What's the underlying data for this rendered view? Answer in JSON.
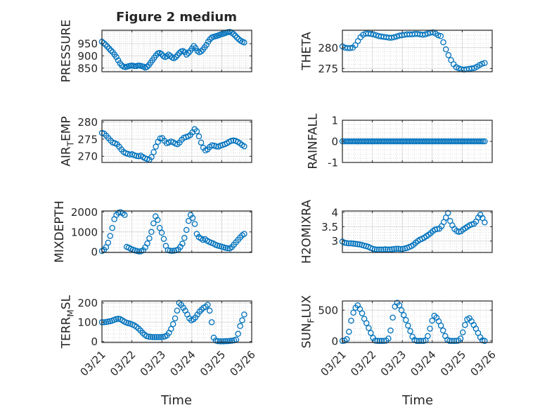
{
  "figure": {
    "title": "Figure 2 medium"
  },
  "x_tick_labels": [
    "03/21",
    "03/22",
    "03/23",
    "03/24",
    "03/25",
    "03/26"
  ],
  "x_axis_label": "Time",
  "colors": {
    "marker": "#0072BD",
    "axis": "#262626",
    "grid": "#d9d9d9",
    "background": "#ffffff"
  },
  "chart_data": [
    {
      "type": "scatter",
      "name": "PRESSURE",
      "ylabel": {
        "main": "PRESSURE"
      },
      "yticks": [
        850,
        900,
        950
      ],
      "ylim": [
        835,
        1005
      ],
      "xlim": [
        0,
        5
      ],
      "x_ticklabels_shown": false,
      "grid": true,
      "y": [
        958,
        952,
        946,
        938,
        930,
        922,
        915,
        905,
        895,
        882,
        870,
        861,
        856,
        854,
        856,
        858,
        860,
        860,
        858,
        858,
        860,
        860,
        858,
        856,
        852,
        855,
        862,
        872,
        882,
        892,
        902,
        910,
        912,
        908,
        900,
        895,
        898,
        905,
        900,
        893,
        890,
        895,
        903,
        912,
        918,
        920,
        915,
        905,
        912,
        920,
        930,
        940,
        932,
        920,
        915,
        918,
        925,
        935,
        945,
        958,
        968,
        975,
        978,
        980,
        982,
        985,
        988,
        990,
        992,
        995,
        997,
        998,
        995,
        990,
        983,
        975,
        968,
        962,
        958,
        955
      ]
    },
    {
      "type": "scatter",
      "name": "THETA",
      "ylabel": {
        "main": "THETA"
      },
      "yticks": [
        275,
        280
      ],
      "ylim": [
        274.2,
        284.2
      ],
      "xlim": [
        0,
        5
      ],
      "x_ticklabels_shown": false,
      "grid": true,
      "y": [
        280.3,
        280.0,
        279.9,
        279.9,
        280.0,
        280.6,
        281.6,
        282.5,
        283.1,
        283.4,
        283.4,
        283.3,
        283.2,
        283.0,
        282.8,
        282.7,
        282.6,
        282.5,
        282.4,
        282.4,
        282.5,
        282.7,
        282.9,
        283.0,
        283.1,
        283.2,
        283.2,
        283.2,
        283.3,
        283.3,
        283.2,
        283.1,
        283.2,
        283.4,
        283.6,
        283.7,
        283.4,
        283.0,
        282.8,
        281.3,
        279.6,
        278.2,
        277.0,
        276.0,
        275.3,
        275.0,
        274.8,
        274.7,
        274.8,
        274.9,
        275.0,
        275.1,
        275.4,
        275.8,
        276.1,
        276.3
      ]
    },
    {
      "type": "scatter",
      "name": "AIR_TEMP",
      "ylabel": {
        "main": "AIR",
        "sub": "T",
        "rest": "EMP"
      },
      "yticks": [
        270,
        275,
        280
      ],
      "ylim": [
        268.2,
        280.5
      ],
      "xlim": [
        0,
        5
      ],
      "x_ticklabels_shown": false,
      "grid": true,
      "y": [
        276.8,
        276.6,
        276.0,
        275.3,
        274.6,
        274.0,
        273.8,
        273.5,
        272.8,
        272.0,
        271.3,
        270.9,
        270.7,
        270.5,
        270.6,
        270.3,
        270.1,
        270.0,
        270.2,
        269.8,
        269.4,
        269.2,
        269.0,
        269.8,
        271.2,
        272.8,
        274.2,
        275.2,
        275.3,
        274.5,
        273.8,
        274.0,
        274.3,
        274.1,
        273.7,
        273.5,
        274.0,
        274.8,
        275.4,
        275.6,
        275.8,
        276.2,
        277.0,
        277.9,
        277.3,
        275.8,
        274.0,
        272.5,
        271.7,
        272.0,
        272.7,
        273.2,
        273.1,
        272.9,
        272.8,
        273.1,
        273.3,
        273.5,
        273.8,
        274.2,
        274.5,
        274.6,
        274.5,
        274.2,
        273.8,
        273.3,
        272.9
      ]
    },
    {
      "type": "scatter",
      "name": "RAINFALL",
      "ylabel": {
        "main": "RAINFALL"
      },
      "yticks": [
        -1,
        0,
        1
      ],
      "ylim": [
        -1,
        1
      ],
      "xlim": [
        0,
        5
      ],
      "x_ticklabels_shown": false,
      "grid": true,
      "x_start": 0.0,
      "x_end": 4.75,
      "count": 80,
      "constant_value": 0
    },
    {
      "type": "scatter",
      "name": "MIXDEPTH",
      "ylabel": {
        "main": "MIXDEPTH"
      },
      "yticks": [
        0,
        1000,
        2000
      ],
      "ylim": [
        -30,
        2050
      ],
      "xlim": [
        0,
        5
      ],
      "x_ticklabels_shown": false,
      "grid": true,
      "y": [
        40,
        100,
        230,
        460,
        800,
        1200,
        1640,
        1850,
        1960,
        1990,
        1940,
        1850,
        250,
        210,
        150,
        110,
        70,
        40,
        20,
        30,
        80,
        230,
        420,
        680,
        1000,
        1430,
        1780,
        1600,
        1200,
        960,
        650,
        300,
        90,
        60,
        50,
        60,
        80,
        120,
        250,
        410,
        700,
        1100,
        1550,
        1850,
        1700,
        1400,
        900,
        740,
        670,
        600,
        640,
        560,
        500,
        460,
        420,
        360,
        320,
        290,
        260,
        230,
        200,
        180,
        170,
        240,
        360,
        480,
        600,
        720,
        830,
        900
      ]
    },
    {
      "type": "scatter",
      "name": "H2OMIXRA",
      "ylabel": {
        "main": "H2OMIXRA"
      },
      "yticks": [
        3,
        3.5,
        4
      ],
      "ylim": [
        2.6,
        4.05
      ],
      "xlim": [
        0,
        5
      ],
      "x_ticklabels_shown": false,
      "grid": true,
      "y": [
        2.98,
        2.94,
        2.93,
        2.92,
        2.92,
        2.91,
        2.9,
        2.89,
        2.88,
        2.86,
        2.84,
        2.82,
        2.8,
        2.76,
        2.73,
        2.71,
        2.7,
        2.7,
        2.7,
        2.7,
        2.71,
        2.7,
        2.7,
        2.71,
        2.72,
        2.73,
        2.73,
        2.72,
        2.72,
        2.74,
        2.76,
        2.79,
        2.82,
        2.87,
        2.94,
        3.0,
        3.05,
        3.08,
        3.12,
        3.17,
        3.22,
        3.28,
        3.35,
        3.4,
        3.42,
        3.43,
        3.52,
        3.66,
        3.82,
        3.98,
        3.7,
        3.55,
        3.42,
        3.35,
        3.32,
        3.34,
        3.4,
        3.45,
        3.5,
        3.55,
        3.58,
        3.6,
        3.68,
        3.82,
        3.92,
        3.8,
        3.65
      ]
    },
    {
      "type": "scatter",
      "name": "TERR_MSL",
      "ylabel": {
        "main": "TERR",
        "sub": "M",
        "rest": "SL"
      },
      "yticks": [
        0,
        100,
        200
      ],
      "ylim": [
        -5,
        210
      ],
      "xlim": [
        0,
        5
      ],
      "x_ticklabels_shown": false,
      "grid": true,
      "y": [
        100,
        100,
        101,
        103,
        105,
        108,
        112,
        116,
        118,
        116,
        110,
        103,
        98,
        95,
        92,
        88,
        83,
        76,
        67,
        57,
        45,
        35,
        28,
        25,
        24,
        23,
        23,
        23,
        23,
        23,
        24,
        26,
        32,
        45,
        65,
        90,
        120,
        160,
        200,
        190,
        175,
        160,
        140,
        120,
        110,
        115,
        125,
        140,
        155,
        165,
        175,
        180,
        190,
        160,
        100,
        20,
        5,
        2,
        1,
        1,
        1,
        2,
        2,
        3,
        4,
        6,
        10,
        40,
        80,
        110,
        140
      ]
    },
    {
      "type": "scatter",
      "name": "SUN_FLUX",
      "ylabel": {
        "main": "SUN",
        "sub": "F",
        "rest": "LUX"
      },
      "yticks": [
        0,
        500
      ],
      "ylim": [
        -25,
        650
      ],
      "xlim": [
        0,
        5
      ],
      "x_ticklabels_shown": false,
      "grid": true,
      "y": [
        0,
        5,
        30,
        150,
        330,
        460,
        540,
        580,
        520,
        450,
        360,
        290,
        210,
        130,
        50,
        5,
        0,
        0,
        0,
        0,
        5,
        40,
        170,
        380,
        560,
        620,
        580,
        500,
        420,
        340,
        250,
        160,
        70,
        15,
        0,
        0,
        0,
        0,
        10,
        80,
        200,
        330,
        410,
        380,
        320,
        250,
        170,
        80,
        20,
        0,
        0,
        0,
        0,
        5,
        40,
        140,
        260,
        350,
        370,
        320,
        260,
        200,
        130,
        60,
        10,
        0
      ]
    }
  ]
}
